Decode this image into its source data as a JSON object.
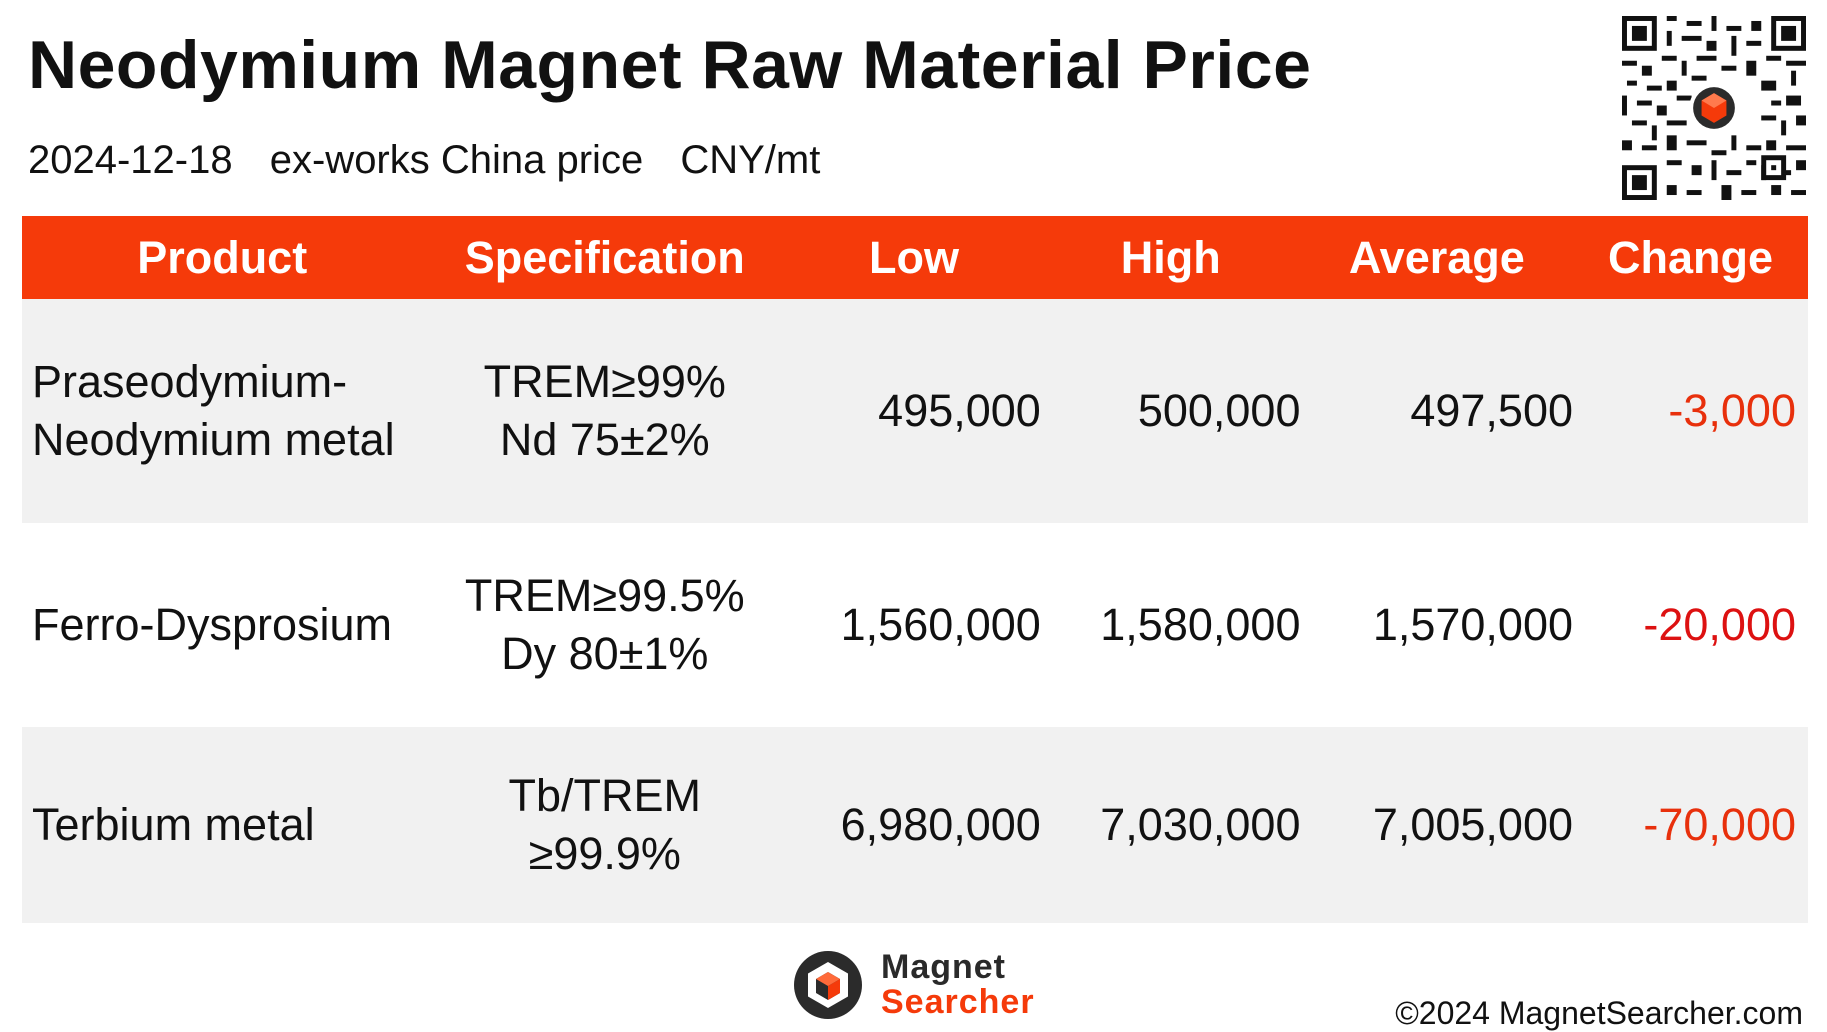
{
  "header": {
    "title": "Neodymium Magnet Raw Material Price",
    "date": "2024-12-18",
    "basis": "ex-works China price",
    "unit": "CNY/mt"
  },
  "table": {
    "columns": [
      "Product",
      "Specification",
      "Low",
      "High",
      "Average",
      "Change"
    ],
    "rows": [
      {
        "product_line1": "Praseodymium-",
        "product_line2": "Neodymium metal",
        "spec_line1": "TREM≥99%",
        "spec_line2": "Nd 75±2%",
        "low": "495,000",
        "high": "500,000",
        "average": "497,500",
        "change": "-3,000"
      },
      {
        "product_line1": "Ferro-Dysprosium",
        "product_line2": "",
        "spec_line1": "TREM≥99.5%",
        "spec_line2": "Dy 80±1%",
        "low": "1,560,000",
        "high": "1,580,000",
        "average": "1,570,000",
        "change": "-20,000"
      },
      {
        "product_line1": "Terbium metal",
        "product_line2": "",
        "spec_line1": "Tb/TREM",
        "spec_line2": "≥99.9%",
        "low": "6,980,000",
        "high": "7,030,000",
        "average": "7,005,000",
        "change": "-70,000"
      }
    ]
  },
  "logo": {
    "word1": "Magnet",
    "word2": "Searcher"
  },
  "footer": {
    "copyright": "©2024 MagnetSearcher.com"
  },
  "colors": {
    "accent": "#f53a0a",
    "negative": "#e8300c",
    "row_alt": "#f1f1f1"
  },
  "icons": [
    "qr-code-icon",
    "magnet-searcher-logo-icon"
  ]
}
